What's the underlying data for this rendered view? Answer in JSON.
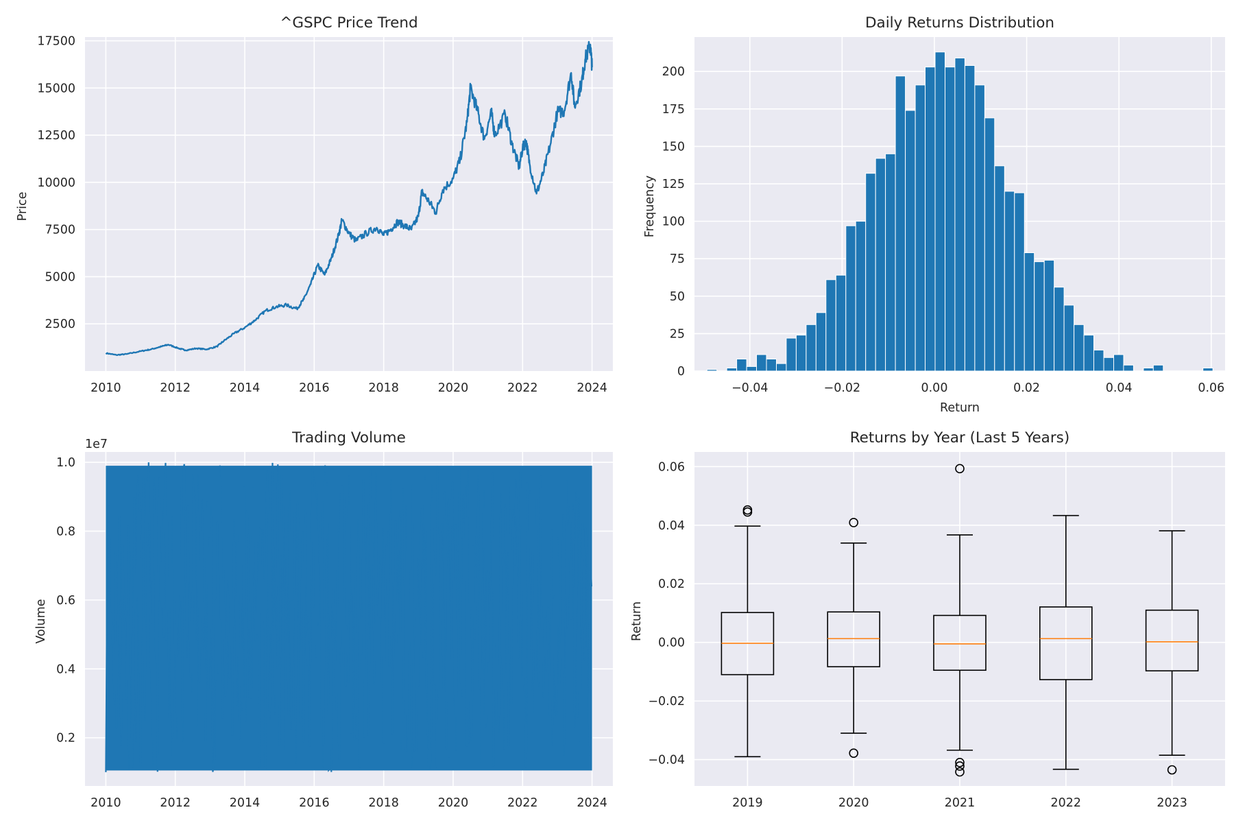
{
  "chart_data": [
    {
      "type": "line",
      "title": "^GSPC Price Trend",
      "xlabel": "",
      "ylabel": "Price",
      "xlim": [
        2009.4,
        2024.6
      ],
      "ylim": [
        0,
        17700
      ],
      "xticks": [
        2010,
        2012,
        2014,
        2016,
        2018,
        2020,
        2022,
        2024
      ],
      "xtick_labels": [
        "2010",
        "2012",
        "2014",
        "2016",
        "2018",
        "2020",
        "2022",
        "2024"
      ],
      "yticks": [
        2500,
        5000,
        7500,
        10000,
        12500,
        15000,
        17500
      ],
      "ytick_labels": [
        "2500",
        "5000",
        "7500",
        "10000",
        "12500",
        "15000",
        "17500"
      ],
      "grid": true,
      "color": "#1f77b4",
      "x": [
        2010.0,
        2010.3,
        2010.6,
        2011.0,
        2011.3,
        2011.6,
        2011.8,
        2012.1,
        2012.3,
        2012.6,
        2012.9,
        2013.2,
        2013.4,
        2013.7,
        2014.0,
        2014.3,
        2014.6,
        2014.9,
        2015.2,
        2015.5,
        2015.7,
        2015.9,
        2016.1,
        2016.3,
        2016.5,
        2016.7,
        2016.8,
        2017.0,
        2017.2,
        2017.5,
        2017.8,
        2018.0,
        2018.2,
        2018.4,
        2018.6,
        2018.8,
        2019.0,
        2019.1,
        2019.3,
        2019.5,
        2019.7,
        2020.0,
        2020.2,
        2020.4,
        2020.5,
        2020.7,
        2020.9,
        2021.1,
        2021.2,
        2021.5,
        2021.7,
        2021.9,
        2022.0,
        2022.1,
        2022.2,
        2022.4,
        2022.6,
        2022.8,
        2023.0,
        2023.2,
        2023.4,
        2023.5,
        2023.7,
        2023.8,
        2023.95,
        2024.0
      ],
      "y": [
        950,
        850,
        900,
        1050,
        1150,
        1300,
        1400,
        1200,
        1100,
        1200,
        1150,
        1300,
        1600,
        2000,
        2300,
        2700,
        3200,
        3400,
        3500,
        3300,
        3800,
        4600,
        5600,
        5100,
        6000,
        7200,
        8000,
        7300,
        6900,
        7300,
        7600,
        7200,
        7500,
        7900,
        7700,
        7500,
        8200,
        9500,
        9000,
        8400,
        9600,
        10200,
        11200,
        13200,
        15000,
        13800,
        12300,
        13700,
        12500,
        13600,
        12000,
        10800,
        11800,
        12200,
        11000,
        9400,
        10500,
        12000,
        13700,
        13800,
        15800,
        14000,
        15300,
        16500,
        17300,
        16100
      ]
    },
    {
      "type": "bar",
      "title": "Daily Returns Distribution",
      "xlabel": "Return",
      "ylabel": "Frequency",
      "xlim": [
        -0.052,
        0.063
      ],
      "ylim": [
        0,
        223
      ],
      "xticks": [
        -0.04,
        -0.02,
        0.0,
        0.02,
        0.04,
        0.06
      ],
      "xtick_labels": [
        "−0.04",
        "−0.02",
        "0.00",
        "0.02",
        "0.04",
        "0.06"
      ],
      "yticks": [
        0,
        25,
        50,
        75,
        100,
        125,
        150,
        175,
        200
      ],
      "ytick_labels": [
        "0",
        "25",
        "50",
        "75",
        "100",
        "125",
        "150",
        "175",
        "200"
      ],
      "grid": true,
      "color": "#1f77b4",
      "bin_start": -0.0493,
      "bin_width": 0.00215,
      "values": [
        1,
        0,
        2,
        8,
        3,
        11,
        8,
        5,
        22,
        24,
        31,
        39,
        61,
        64,
        97,
        100,
        132,
        142,
        145,
        197,
        174,
        191,
        203,
        213,
        203,
        209,
        204,
        191,
        169,
        137,
        120,
        119,
        79,
        73,
        74,
        56,
        44,
        31,
        24,
        14,
        9,
        11,
        4,
        0,
        2,
        4,
        0,
        0,
        0,
        0,
        2
      ]
    },
    {
      "type": "line",
      "title": "Trading Volume",
      "xlabel": "",
      "ylabel": "Volume",
      "offset_label": "1e7",
      "xlim": [
        2009.4,
        2024.6
      ],
      "ylim": [
        0.06,
        1.03
      ],
      "xticks": [
        2010,
        2012,
        2014,
        2016,
        2018,
        2020,
        2022,
        2024
      ],
      "xtick_labels": [
        "2010",
        "2012",
        "2014",
        "2016",
        "2018",
        "2020",
        "2022",
        "2024"
      ],
      "yticks": [
        0.2,
        0.4,
        0.6,
        0.8,
        1.0
      ],
      "ytick_labels": [
        "0.2",
        "0.4",
        "0.6",
        "0.8",
        "1.0"
      ],
      "grid": true,
      "color": "#1f77b4",
      "x_range": [
        2010.0,
        2024.0
      ],
      "volume_range": [
        0.1,
        1.0
      ]
    },
    {
      "type": "box",
      "title": "Returns by Year (Last 5 Years)",
      "xlabel": "",
      "ylabel": "Return",
      "ylim": [
        -0.049,
        0.065
      ],
      "yticks": [
        -0.04,
        -0.02,
        0.0,
        0.02,
        0.04,
        0.06
      ],
      "ytick_labels": [
        "−0.04",
        "−0.02",
        "0.00",
        "0.02",
        "0.04",
        "0.06"
      ],
      "grid": true,
      "median_color": "#ff7f0e",
      "categories": [
        "2019",
        "2020",
        "2021",
        "2022",
        "2023"
      ],
      "boxes": [
        {
          "whislo": -0.039,
          "q1": -0.011,
          "med": -0.0003,
          "q3": 0.0102,
          "whishi": 0.0397,
          "fliers": [
            0.0445,
            0.0452
          ]
        },
        {
          "whislo": -0.031,
          "q1": -0.0083,
          "med": 0.0013,
          "q3": 0.0104,
          "whishi": 0.0339,
          "fliers": [
            0.0409,
            -0.0378
          ]
        },
        {
          "whislo": -0.0368,
          "q1": -0.0095,
          "med": -0.0005,
          "q3": 0.0092,
          "whishi": 0.0367,
          "fliers": [
            0.0593,
            -0.041,
            -0.0422,
            -0.0442
          ]
        },
        {
          "whislo": -0.0433,
          "q1": -0.0127,
          "med": 0.0013,
          "q3": 0.0121,
          "whishi": 0.0433,
          "fliers": []
        },
        {
          "whislo": -0.0385,
          "q1": -0.0097,
          "med": 0.0002,
          "q3": 0.011,
          "whishi": 0.0381,
          "fliers": [
            -0.0435
          ]
        }
      ]
    }
  ]
}
